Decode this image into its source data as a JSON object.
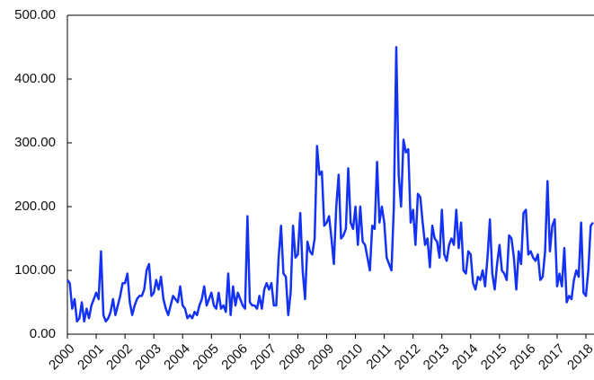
{
  "chart_data": {
    "type": "line",
    "categories": [
      "2000",
      null,
      null,
      null,
      null,
      null,
      null,
      null,
      null,
      null,
      null,
      null,
      "2001",
      null,
      null,
      null,
      null,
      null,
      null,
      null,
      null,
      null,
      null,
      null,
      "2002",
      null,
      null,
      null,
      null,
      null,
      null,
      null,
      null,
      null,
      null,
      null,
      "2003",
      null,
      null,
      null,
      null,
      null,
      null,
      null,
      null,
      null,
      null,
      null,
      "2004",
      null,
      null,
      null,
      null,
      null,
      null,
      null,
      null,
      null,
      null,
      null,
      "2005",
      null,
      null,
      null,
      null,
      null,
      null,
      null,
      null,
      null,
      null,
      null,
      "2006",
      null,
      null,
      null,
      null,
      null,
      null,
      null,
      null,
      null,
      null,
      null,
      "2007",
      null,
      null,
      null,
      null,
      null,
      null,
      null,
      null,
      null,
      null,
      null,
      "2008",
      null,
      null,
      null,
      null,
      null,
      null,
      null,
      null,
      null,
      null,
      null,
      "2009",
      null,
      null,
      null,
      null,
      null,
      null,
      null,
      null,
      null,
      null,
      null,
      "2010",
      null,
      null,
      null,
      null,
      null,
      null,
      null,
      null,
      null,
      null,
      null,
      "2011",
      null,
      null,
      null,
      null,
      null,
      null,
      null,
      null,
      null,
      null,
      null,
      "2012",
      null,
      null,
      null,
      null,
      null,
      null,
      null,
      null,
      null,
      null,
      null,
      "2013",
      null,
      null,
      null,
      null,
      null,
      null,
      null,
      null,
      null,
      null,
      null,
      "2014",
      null,
      null,
      null,
      null,
      null,
      null,
      null,
      null,
      null,
      null,
      null,
      "2015",
      null,
      null,
      null,
      null,
      null,
      null,
      null,
      null,
      null,
      null,
      null,
      "2016",
      null,
      null,
      null,
      null,
      null,
      null,
      null,
      null,
      null,
      null,
      null,
      "2017",
      null,
      null,
      null,
      null,
      null,
      null,
      null,
      null,
      null,
      null,
      null,
      "2018",
      null,
      null,
      null
    ],
    "values": [
      85,
      80,
      40,
      55,
      20,
      25,
      50,
      20,
      40,
      25,
      45,
      55,
      65,
      55,
      130,
      30,
      20,
      25,
      35,
      55,
      30,
      45,
      60,
      80,
      80,
      95,
      50,
      30,
      45,
      55,
      60,
      60,
      70,
      100,
      110,
      60,
      65,
      85,
      70,
      90,
      55,
      40,
      30,
      45,
      60,
      55,
      50,
      75,
      45,
      40,
      25,
      30,
      25,
      35,
      30,
      45,
      55,
      75,
      45,
      55,
      65,
      45,
      40,
      65,
      40,
      45,
      35,
      95,
      30,
      75,
      45,
      65,
      55,
      45,
      40,
      185,
      50,
      45,
      45,
      40,
      60,
      40,
      70,
      80,
      70,
      80,
      45,
      45,
      120,
      170,
      95,
      90,
      30,
      65,
      170,
      120,
      125,
      190,
      100,
      55,
      145,
      130,
      125,
      150,
      295,
      250,
      255,
      170,
      175,
      185,
      150,
      110,
      200,
      250,
      150,
      155,
      165,
      260,
      175,
      165,
      200,
      140,
      200,
      145,
      140,
      120,
      100,
      170,
      165,
      270,
      175,
      200,
      175,
      120,
      110,
      100,
      200,
      450,
      250,
      200,
      305,
      285,
      290,
      175,
      195,
      140,
      220,
      215,
      175,
      140,
      150,
      105,
      170,
      150,
      145,
      120,
      195,
      125,
      115,
      140,
      150,
      140,
      195,
      135,
      175,
      100,
      95,
      130,
      125,
      80,
      70,
      90,
      85,
      100,
      75,
      120,
      180,
      95,
      70,
      110,
      140,
      100,
      95,
      85,
      155,
      150,
      120,
      70,
      130,
      110,
      190,
      195,
      125,
      130,
      120,
      115,
      125,
      85,
      90,
      130,
      240,
      130,
      170,
      180,
      75,
      95,
      75,
      135,
      50,
      60,
      55,
      85,
      100,
      90,
      175,
      65,
      60,
      100,
      170,
      175
    ],
    "color": "#1432f5",
    "ylim": [
      0,
      500
    ],
    "yticks": [
      {
        "value": 0,
        "label": "0.00"
      },
      {
        "value": 100,
        "label": "100.00"
      },
      {
        "value": 200,
        "label": "200.00"
      },
      {
        "value": 300,
        "label": "300.00"
      },
      {
        "value": 400,
        "label": "400.00"
      },
      {
        "value": 500,
        "label": "500.00"
      }
    ],
    "grid": false
  }
}
